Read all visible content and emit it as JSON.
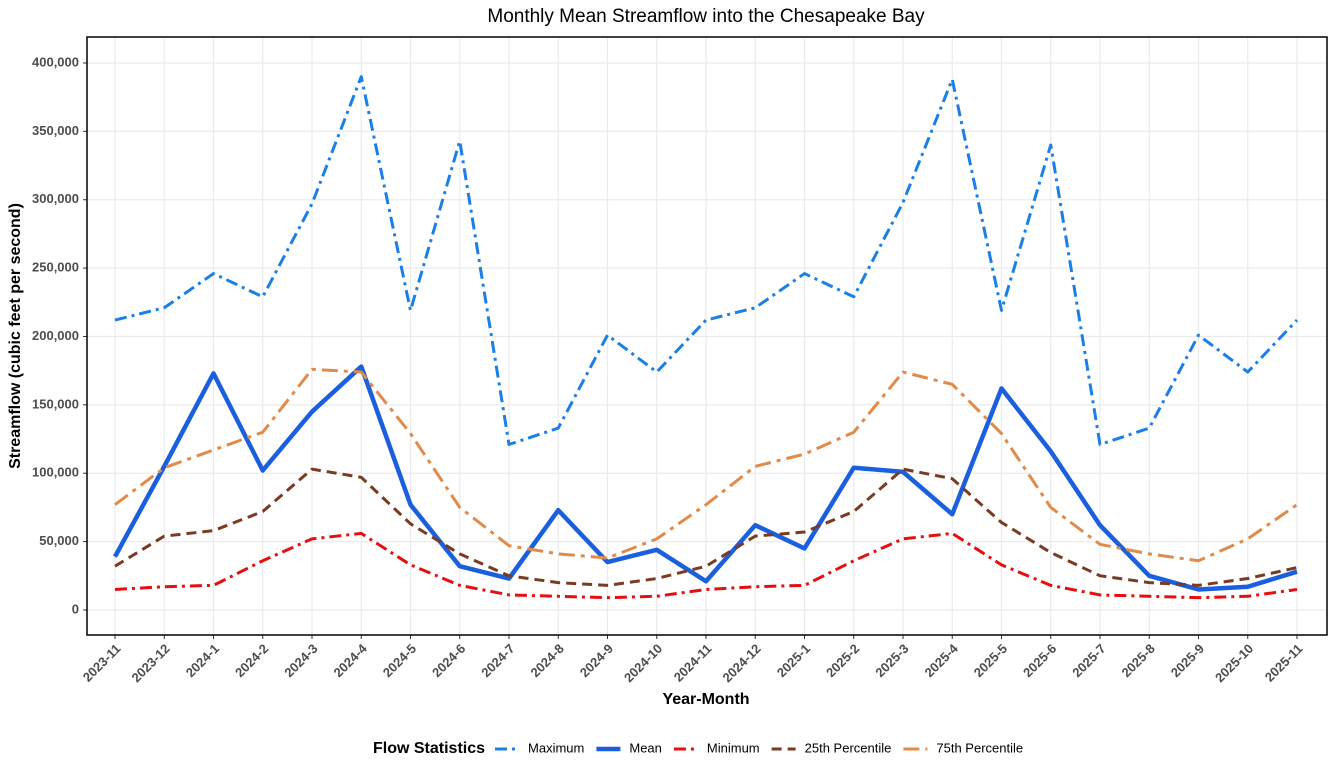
{
  "chart_data": {
    "type": "line",
    "title": "Monthly Mean Streamflow into the Chesapeake Bay",
    "x_label": "Year-Month",
    "y_label": "Streamflow (cubic feet per second)",
    "legend_title": "Flow Statistics",
    "legend_position": "bottom",
    "grid": true,
    "categories": [
      "2023-11",
      "2023-12",
      "2024-1",
      "2024-2",
      "2024-3",
      "2024-4",
      "2024-5",
      "2024-6",
      "2024-7",
      "2024-8",
      "2024-9",
      "2024-10",
      "2024-11",
      "2024-12",
      "2025-1",
      "2025-2",
      "2025-3",
      "2025-4",
      "2025-5",
      "2025-6",
      "2025-7",
      "2025-8",
      "2025-9",
      "2025-10",
      "2025-11"
    ],
    "ylim": [
      -18300,
      419000
    ],
    "yticks": [
      {
        "value": 0,
        "label": "0"
      },
      {
        "value": 50000,
        "label": "50,000"
      },
      {
        "value": 100000,
        "label": "100,000"
      },
      {
        "value": 150000,
        "label": "150,000"
      },
      {
        "value": 200000,
        "label": "200,000"
      },
      {
        "value": 250000,
        "label": "250,000"
      },
      {
        "value": 300000,
        "label": "300,000"
      },
      {
        "value": 350000,
        "label": "350,000"
      },
      {
        "value": 400000,
        "label": "400,000"
      }
    ],
    "series": [
      {
        "name": "Maximum",
        "color": "#1a7fe6",
        "dash": "dashdot",
        "width": 3,
        "values": [
          212000,
          221000,
          246000,
          229000,
          297000,
          390000,
          219000,
          343000,
          121000,
          133000,
          201000,
          174000,
          212000,
          221000,
          246000,
          229000,
          298000,
          388000,
          219000,
          340000,
          121000,
          133000,
          201000,
          174000,
          212000
        ]
      },
      {
        "name": "Mean",
        "color": "#1a5fdd",
        "dash": "solid",
        "width": 4.5,
        "values": [
          39000,
          105000,
          173000,
          102000,
          145000,
          178000,
          77000,
          32000,
          23000,
          73000,
          35000,
          44000,
          21000,
          62000,
          45000,
          104000,
          101000,
          70000,
          162000,
          116000,
          62000,
          25000,
          15000,
          17000,
          28000
        ]
      },
      {
        "name": "Minimum",
        "color": "#e60e0e",
        "dash": "dashdot",
        "width": 3,
        "values": [
          15000,
          17000,
          18000,
          36000,
          52000,
          56000,
          33000,
          18000,
          11000,
          10000,
          9000,
          10000,
          15000,
          17000,
          18000,
          36000,
          52000,
          56000,
          33000,
          18000,
          11000,
          10000,
          9000,
          10000,
          15000
        ]
      },
      {
        "name": "25th Percentile",
        "color": "#7b3a22",
        "dash": "dashed",
        "width": 3,
        "values": [
          32000,
          54000,
          58000,
          72000,
          103000,
          97000,
          63000,
          41000,
          25000,
          20000,
          18000,
          23000,
          32000,
          54000,
          57000,
          72000,
          103000,
          96000,
          64000,
          42000,
          25000,
          20000,
          18000,
          23000,
          31000
        ]
      },
      {
        "name": "75th Percentile",
        "color": "#e08b4a",
        "dash": "longdash",
        "width": 3,
        "values": [
          77000,
          104000,
          117000,
          130000,
          176000,
          174000,
          129000,
          75000,
          47000,
          41000,
          38000,
          52000,
          77000,
          105000,
          114000,
          130000,
          174000,
          165000,
          129000,
          75000,
          48000,
          41000,
          36000,
          52000,
          77000
        ]
      }
    ]
  }
}
